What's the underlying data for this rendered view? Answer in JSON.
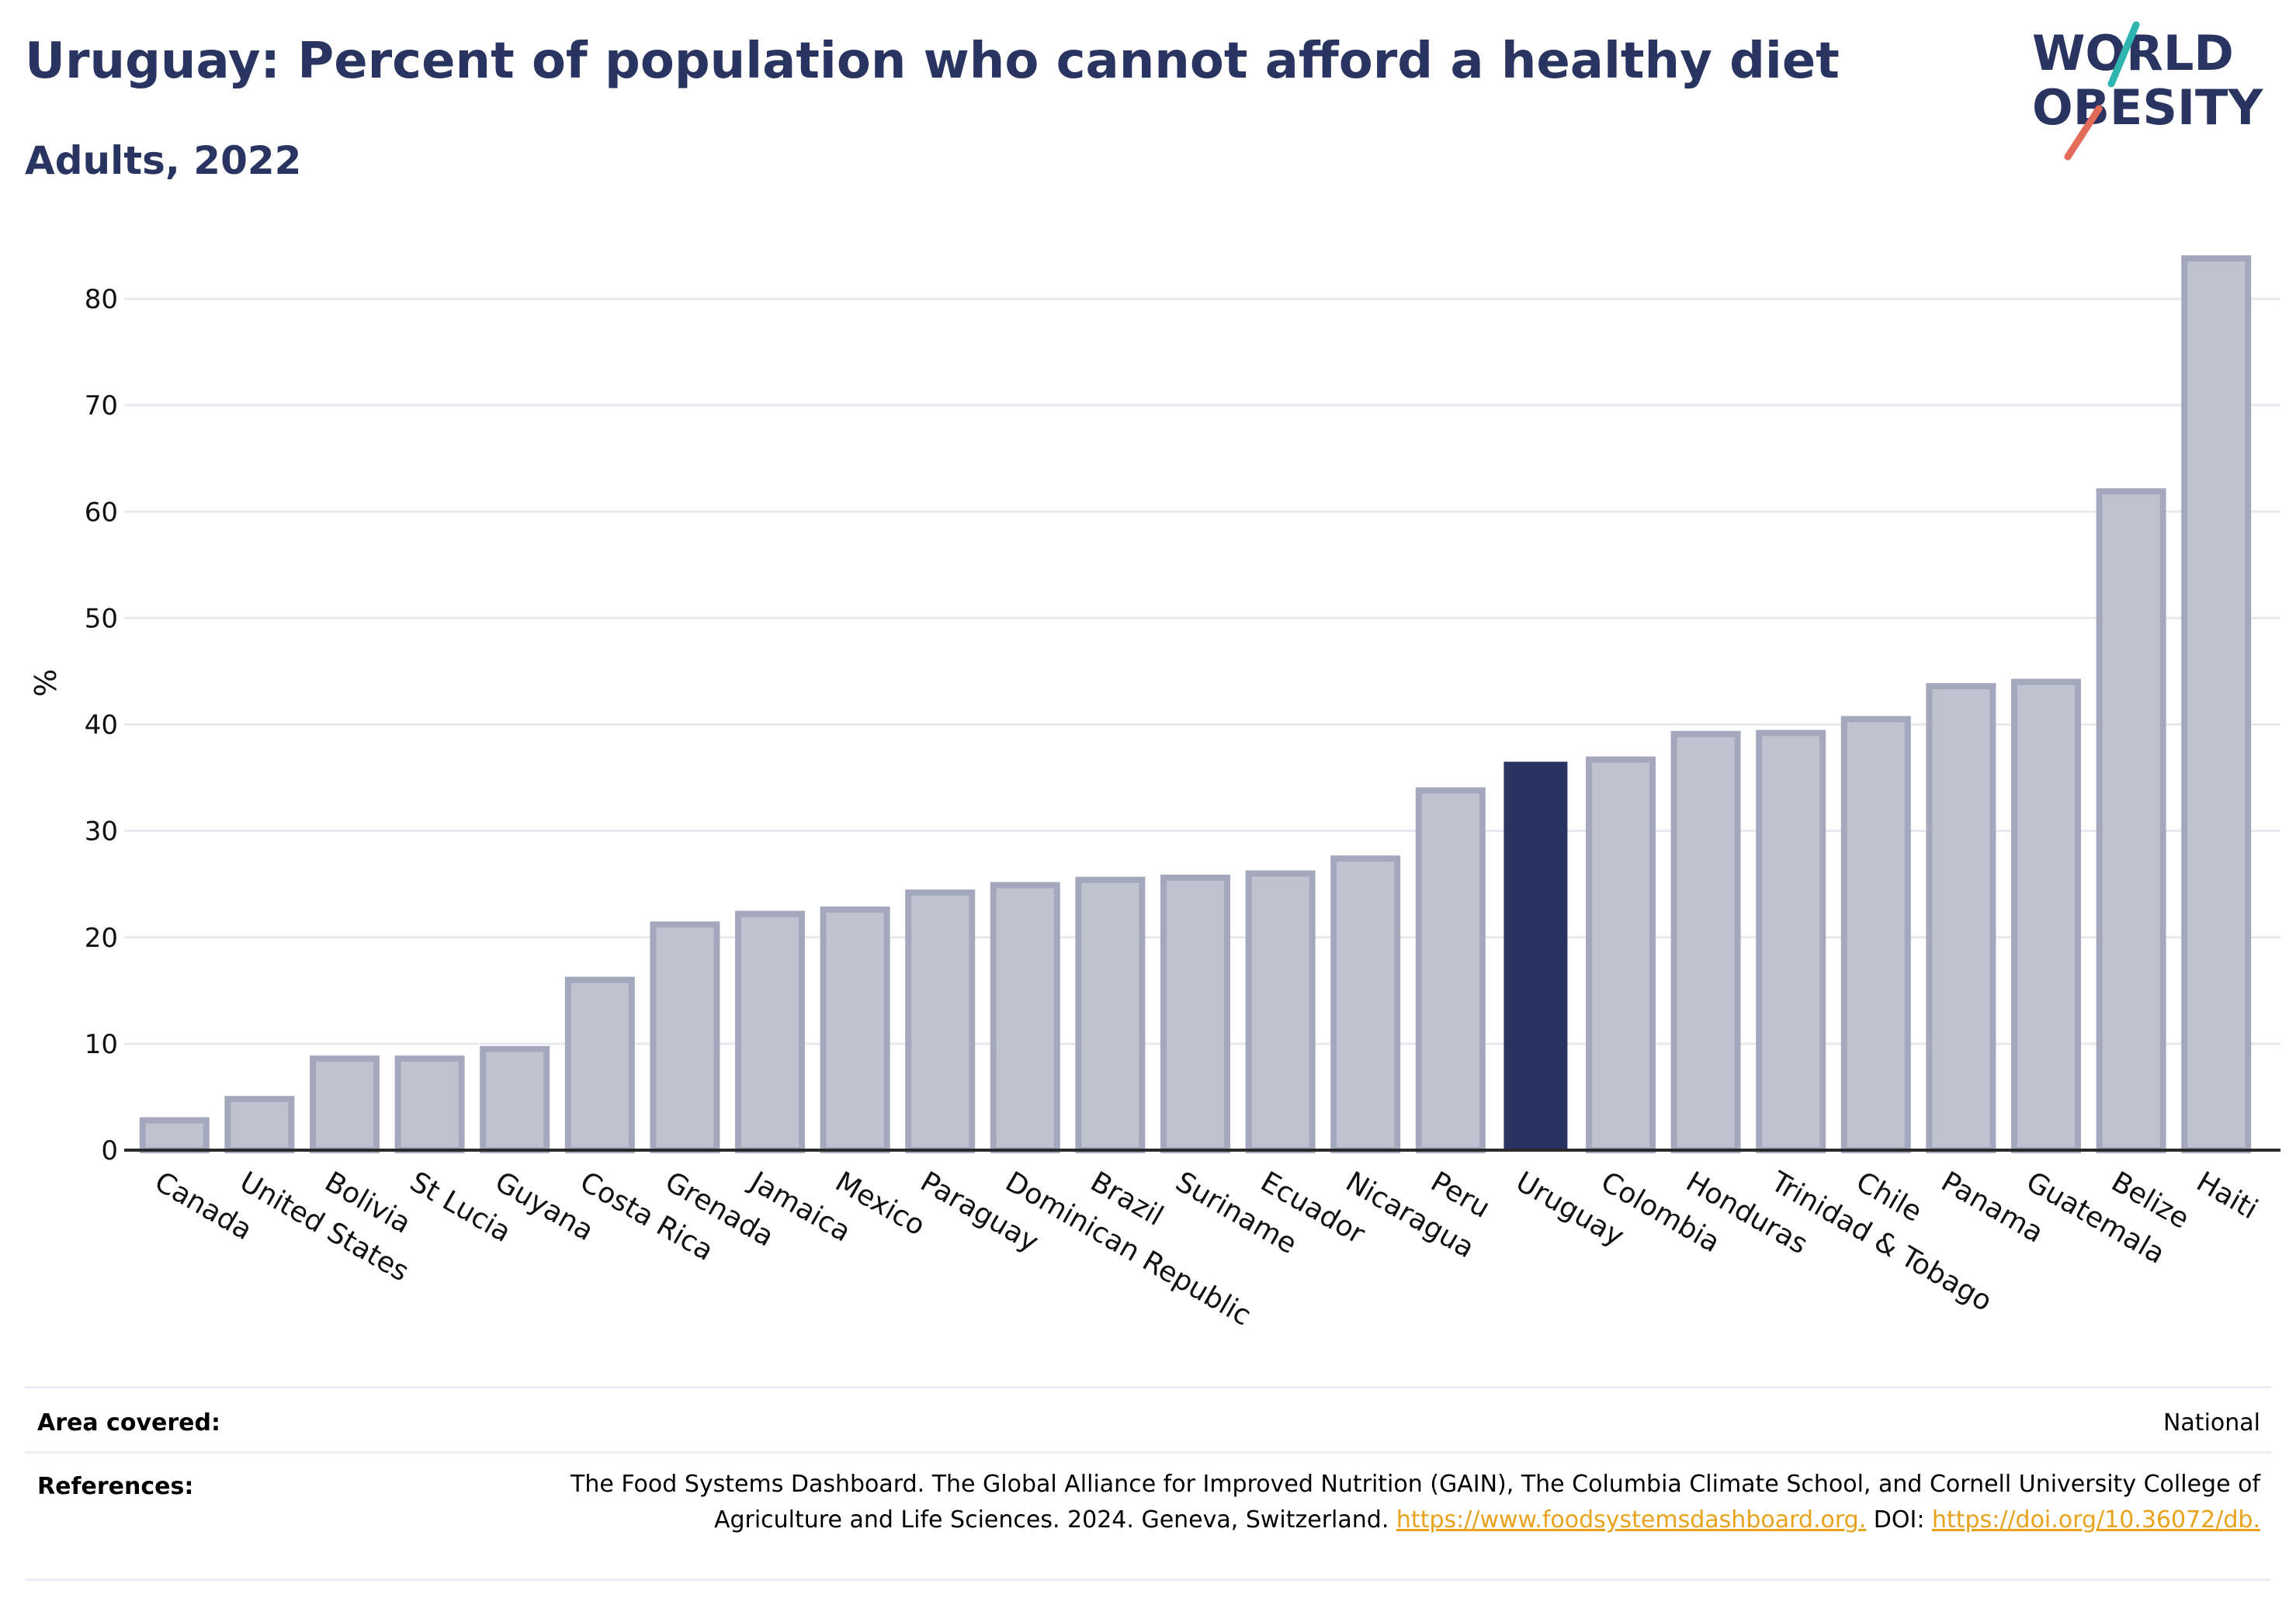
{
  "title": "Uruguay: Percent of population who cannot afford a healthy diet",
  "subtitle": "Adults, 2022",
  "logo": {
    "line1": "WORLD",
    "line2": "OBESITY",
    "teal": "#2fb5b0",
    "coral": "#e36b5a",
    "navy": "#2a3461"
  },
  "chart_data": {
    "type": "bar",
    "title": "Uruguay: Percent of population who cannot afford a healthy diet",
    "subtitle": "Adults, 2022",
    "xlabel": "",
    "ylabel": "%",
    "ylim": [
      0,
      85
    ],
    "yticks": [
      0,
      10,
      20,
      30,
      40,
      50,
      60,
      70,
      80
    ],
    "grid": true,
    "highlight": "Uruguay",
    "colors": {
      "bar": "#bfc2cf",
      "bar_edge": "#a3a8bd",
      "highlight": "#2a3461",
      "grid": "#e8e9ee",
      "axis": "#2a2a2a"
    },
    "categories": [
      "Canada",
      "United States",
      "Bolivia",
      "St Lucia",
      "Guyana",
      "Costa Rica",
      "Grenada",
      "Jamaica",
      "Mexico",
      "Paraguay",
      "Dominican Republic",
      "Brazil",
      "Suriname",
      "Ecuador",
      "Nicaragua",
      "Peru",
      "Uruguay",
      "Colombia",
      "Honduras",
      "Trinidad & Tobago",
      "Chile",
      "Panama",
      "Guatemala",
      "Belize",
      "Haiti"
    ],
    "values": [
      2.8,
      4.8,
      8.6,
      8.6,
      9.5,
      16.0,
      21.2,
      22.2,
      22.6,
      24.2,
      24.9,
      25.4,
      25.6,
      26.0,
      27.4,
      33.8,
      36.5,
      36.7,
      39.1,
      39.2,
      40.5,
      43.6,
      44.0,
      61.9,
      83.8
    ]
  },
  "footer": {
    "area_label": "Area covered:",
    "area_value": "National",
    "refs_label": "References:",
    "refs_text1": "The Food Systems Dashboard. The Global Alliance for Improved Nutrition (GAIN), The Columbia Climate School, and Cornell University College of Agriculture and Life Sciences. 2024. Geneva, Switzerland.",
    "refs_link1": "https://www.foodsystemsdashboard.org.",
    "refs_text2": "DOI:",
    "refs_link2": "https://doi.org/10.36072/db."
  }
}
